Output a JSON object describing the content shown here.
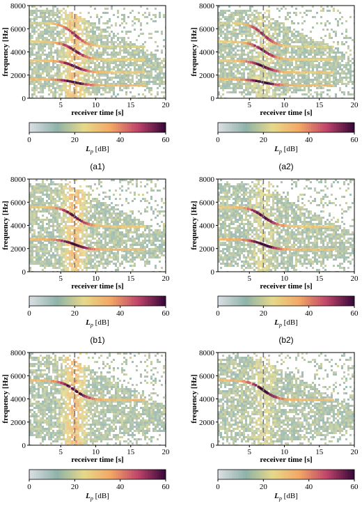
{
  "chart_data": [
    {
      "id": "a1",
      "type": "heatmap",
      "panel_label": "(a1)",
      "xlabel": "receiver time [s]",
      "ylabel": "frequency [Hz]",
      "xlim": [
        0.5,
        20
      ],
      "ylim": [
        0,
        8000
      ],
      "xticks": [
        5,
        10,
        15,
        20
      ],
      "yticks": [
        0,
        2000,
        4000,
        6000,
        8000
      ],
      "marker_time": 7,
      "colorbar": {
        "label": "L_p [dB]",
        "min": 0,
        "max": 60,
        "ticks": [
          0,
          20,
          40,
          60
        ],
        "colormap": [
          "#d8dde2",
          "#8eb2a8",
          "#e6d98a",
          "#f2a765",
          "#c0456b",
          "#3a0a3a"
        ]
      },
      "harmonics": [
        [
          1630,
          1110
        ],
        [
          3260,
          2220
        ],
        [
          4890,
          3330
        ],
        [
          6520,
          4440
        ]
      ],
      "band": 0.78
    },
    {
      "id": "a2",
      "type": "heatmap",
      "panel_label": "(a2)",
      "xlabel": "receiver time [s]",
      "ylabel": "frequency [Hz]",
      "xlim": [
        0.5,
        20
      ],
      "ylim": [
        0,
        8000
      ],
      "xticks": [
        5,
        10,
        15,
        20
      ],
      "yticks": [
        0,
        2000,
        4000,
        6000,
        8000
      ],
      "marker_time": 7,
      "colorbar": {
        "label": "L_p [dB]",
        "min": 0,
        "max": 60,
        "ticks": [
          0,
          20,
          40,
          60
        ],
        "colormap": [
          "#d8dde2",
          "#8eb2a8",
          "#e6d98a",
          "#f2a765",
          "#c0456b",
          "#3a0a3a"
        ]
      },
      "harmonics": [
        [
          1630,
          1110
        ],
        [
          3260,
          2220
        ],
        [
          4890,
          3330
        ],
        [
          6520,
          4440
        ]
      ],
      "band": 0.3
    },
    {
      "id": "b1",
      "type": "heatmap",
      "panel_label": "(b1)",
      "xlabel": "receiver time [s]",
      "ylabel": "frequency [Hz]",
      "xlim": [
        0.5,
        20
      ],
      "ylim": [
        0,
        8000
      ],
      "xticks": [
        5,
        10,
        15,
        20
      ],
      "yticks": [
        0,
        2000,
        4000,
        6000,
        8000
      ],
      "marker_time": 7,
      "colorbar": {
        "label": "L_p [dB]",
        "min": 0,
        "max": 60,
        "ticks": [
          0,
          20,
          40,
          60
        ],
        "colormap": [
          "#d8dde2",
          "#8eb2a8",
          "#e6d98a",
          "#f2a765",
          "#c0456b",
          "#3a0a3a"
        ]
      },
      "harmonics": [
        [
          2800,
          1900
        ],
        [
          5600,
          3900
        ]
      ],
      "band": 0.78
    },
    {
      "id": "b2",
      "type": "heatmap",
      "panel_label": "(b2)",
      "xlabel": "receiver time [s]",
      "ylabel": "frequency [Hz]",
      "xlim": [
        0.5,
        20
      ],
      "ylim": [
        0,
        8000
      ],
      "xticks": [
        5,
        10,
        15,
        20
      ],
      "yticks": [
        0,
        2000,
        4000,
        6000,
        8000
      ],
      "marker_time": 7,
      "colorbar": {
        "label": "L_p [dB]",
        "min": 0,
        "max": 60,
        "ticks": [
          0,
          20,
          40,
          60
        ],
        "colormap": [
          "#d8dde2",
          "#8eb2a8",
          "#e6d98a",
          "#f2a765",
          "#c0456b",
          "#3a0a3a"
        ]
      },
      "harmonics": [
        [
          2800,
          1900
        ],
        [
          5600,
          3900
        ]
      ],
      "band": 0.3
    },
    {
      "id": "c1",
      "type": "heatmap",
      "panel_label": "(c1)",
      "xlabel": "receiver time [s]",
      "ylabel": "frequency [Hz]",
      "xlim": [
        0.5,
        20
      ],
      "ylim": [
        0,
        8000
      ],
      "xticks": [
        5,
        10,
        15,
        20
      ],
      "yticks": [
        0,
        2000,
        4000,
        6000,
        8000
      ],
      "marker_time": 7,
      "colorbar": {
        "label": "L_p [dB]",
        "min": 0,
        "max": 60,
        "ticks": [
          0,
          20,
          40,
          60
        ],
        "colormap": [
          "#d8dde2",
          "#8eb2a8",
          "#e6d98a",
          "#f2a765",
          "#c0456b",
          "#3a0a3a"
        ]
      },
      "harmonics": [
        [
          5600,
          3900
        ]
      ],
      "band": 0.8
    },
    {
      "id": "c2",
      "type": "heatmap",
      "panel_label": "(c2)",
      "xlabel": "receiver time [s]",
      "ylabel": "frequency [Hz]",
      "xlim": [
        0.5,
        20
      ],
      "ylim": [
        0,
        8000
      ],
      "xticks": [
        5,
        10,
        15,
        20
      ],
      "yticks": [
        0,
        2000,
        4000,
        6000,
        8000
      ],
      "marker_time": 7,
      "colorbar": {
        "label": "L_p [dB]",
        "min": 0,
        "max": 60,
        "ticks": [
          0,
          20,
          40,
          60
        ],
        "colormap": [
          "#d8dde2",
          "#8eb2a8",
          "#e6d98a",
          "#f2a765",
          "#c0456b",
          "#3a0a3a"
        ]
      },
      "harmonics": [
        [
          5600,
          3900
        ]
      ],
      "band": 0.3
    }
  ]
}
